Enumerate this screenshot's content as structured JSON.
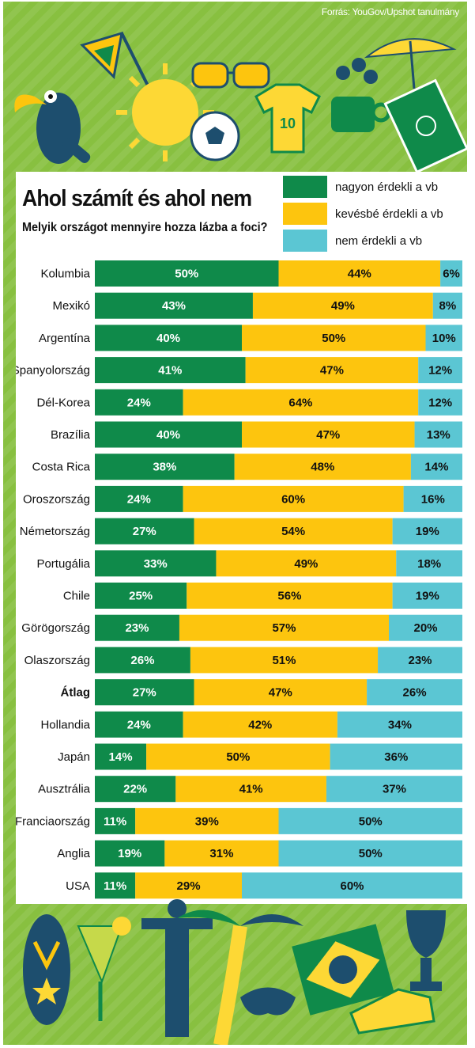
{
  "source": "Forrás: YouGov/Upshot tanulmány",
  "colors": {
    "strong": "#0f8a4a",
    "less": "#fdc50e",
    "none": "#5bc6d3",
    "background": "#88c040"
  },
  "chart_data": {
    "type": "bar",
    "orientation": "horizontal",
    "stacked": true,
    "percent_stacked": true,
    "title": "Ahol számít és ahol nem",
    "subtitle": "Melyik országot mennyire hozza lázba a foci?",
    "legend_position": "top-right",
    "categories": [
      "Kolumbia",
      "Mexikó",
      "Argentína",
      "Spanyolország",
      "Dél-Korea",
      "Brazília",
      "Costa Rica",
      "Oroszország",
      "Németország",
      "Portugália",
      "Chile",
      "Görögország",
      "Olaszország",
      "Átlag",
      "Hollandia",
      "Japán",
      "Ausztrália",
      "Franciaország",
      "Anglia",
      "USA"
    ],
    "series": [
      {
        "name": "nagyon érdekli a vb",
        "color": "#0f8a4a",
        "values": [
          50,
          43,
          40,
          41,
          24,
          40,
          38,
          24,
          27,
          33,
          25,
          23,
          26,
          27,
          24,
          14,
          22,
          11,
          19,
          11
        ]
      },
      {
        "name": "kevésbé érdekli a vb",
        "color": "#fdc50e",
        "values": [
          44,
          49,
          50,
          47,
          64,
          47,
          48,
          60,
          54,
          49,
          56,
          57,
          51,
          47,
          42,
          50,
          41,
          39,
          31,
          29
        ]
      },
      {
        "name": "nem érdekli a vb",
        "color": "#5bc6d3",
        "values": [
          6,
          8,
          10,
          12,
          12,
          13,
          14,
          16,
          19,
          18,
          19,
          20,
          23,
          26,
          34,
          36,
          37,
          50,
          50,
          60
        ]
      }
    ],
    "value_suffix": "%",
    "bold_category": "Átlag"
  }
}
